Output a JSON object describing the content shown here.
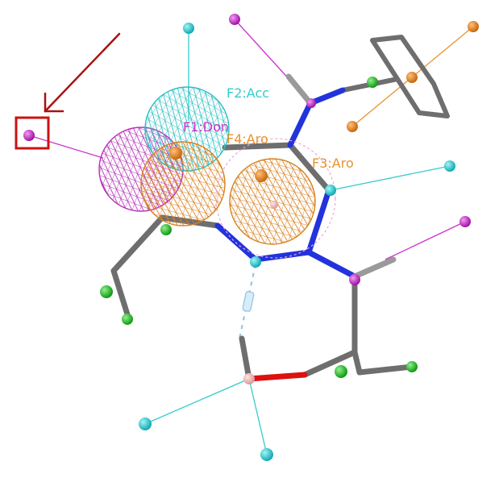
{
  "labels": {
    "f2": "F2:Acc",
    "f4": "F4:Aro",
    "f3": "F3:Aro",
    "f1": "F1:Don"
  },
  "colors": {
    "acc": "#33cccc",
    "aro": "#e8922e",
    "don": "#cc33cc",
    "hyd": "#22bb22",
    "bond": "#6e6e6e",
    "nitrogen": "#2233dd",
    "oxygen": "#dd1111",
    "arrow": "#aa1111",
    "box": "#cc1111"
  },
  "icons": {
    "pointer": "arrow-icon",
    "highlight": "highlight-box-icon"
  }
}
